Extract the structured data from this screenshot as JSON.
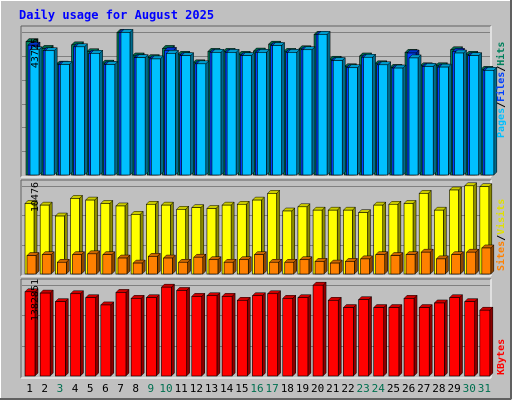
{
  "chart_data": [
    {
      "type": "bar",
      "title": "Daily usage for August 2025",
      "panel": "hits-files-pages",
      "ymax_label": "43725",
      "right_labels": [
        {
          "text": "Pages",
          "color": "#00c0ff"
        },
        {
          "text": "Files",
          "color": "#0040ff"
        },
        {
          "text": "Hits",
          "color": "#00805c"
        }
      ],
      "separators": [
        "/",
        "/"
      ],
      "categories": [
        "1",
        "2",
        "3",
        "4",
        "5",
        "6",
        "7",
        "8",
        "9",
        "10",
        "11",
        "12",
        "13",
        "14",
        "15",
        "16",
        "17",
        "18",
        "19",
        "20",
        "21",
        "22",
        "23",
        "24",
        "25",
        "26",
        "27",
        "28",
        "29",
        "30",
        "31"
      ],
      "series": [
        {
          "name": "Hits",
          "color": "#00805c",
          "values": [
            40800,
            38700,
            33900,
            39800,
            37700,
            34200,
            43600,
            36400,
            35900,
            38700,
            36900,
            34300,
            37800,
            37800,
            36900,
            37900,
            40000,
            37800,
            38600,
            43000,
            35400,
            33100,
            36400,
            34000,
            32900,
            37500,
            33400,
            33400,
            38300,
            36900,
            32300
          ]
        },
        {
          "name": "Files",
          "color": "#0040ff",
          "values": [
            39700,
            38000,
            33800,
            39200,
            37200,
            33800,
            43600,
            35900,
            35500,
            38100,
            36500,
            34000,
            37500,
            37500,
            36500,
            37500,
            39600,
            37500,
            38300,
            43000,
            35000,
            32800,
            36000,
            33700,
            32700,
            37300,
            33200,
            33000,
            37800,
            36500,
            32000
          ]
        },
        {
          "name": "Pages",
          "color": "#00c0ff",
          "values": [
            38300,
            38000,
            33800,
            39200,
            37200,
            33800,
            43600,
            35900,
            35500,
            37200,
            36500,
            34000,
            37500,
            37500,
            36500,
            37500,
            39600,
            37500,
            38300,
            43000,
            35000,
            32800,
            36000,
            33700,
            32700,
            35800,
            33200,
            33000,
            37300,
            36500,
            32000
          ]
        }
      ]
    },
    {
      "type": "bar",
      "panel": "visits-sites",
      "ymax_label": "10476",
      "right_labels": [
        {
          "text": "Sites",
          "color": "#ff8000"
        },
        {
          "text": "Visits",
          "color": "#e0e000"
        }
      ],
      "separators": [
        "/"
      ],
      "categories": [
        "1",
        "2",
        "3",
        "4",
        "5",
        "6",
        "7",
        "8",
        "9",
        "10",
        "11",
        "12",
        "13",
        "14",
        "15",
        "16",
        "17",
        "18",
        "19",
        "20",
        "21",
        "22",
        "23",
        "24",
        "25",
        "26",
        "27",
        "28",
        "29",
        "30",
        "31"
      ],
      "series": [
        {
          "name": "Visits",
          "color": "#ffff00",
          "values": [
            8400,
            8200,
            6900,
            9000,
            8800,
            8400,
            8100,
            7100,
            8300,
            8200,
            7700,
            7900,
            7800,
            8200,
            8300,
            8800,
            9600,
            7500,
            8000,
            7600,
            7600,
            7600,
            7300,
            8200,
            8300,
            8400,
            9600,
            7600,
            10000,
            10500,
            10400
          ]
        },
        {
          "name": "Sites",
          "color": "#ff8000",
          "values": [
            2200,
            2300,
            1400,
            2300,
            2400,
            2300,
            1900,
            1300,
            2100,
            1900,
            1400,
            2000,
            1700,
            1400,
            1700,
            2300,
            1400,
            1400,
            1700,
            1500,
            1300,
            1500,
            1800,
            2300,
            2200,
            2300,
            2600,
            1800,
            2300,
            2600,
            3100
          ]
        }
      ]
    },
    {
      "type": "bar",
      "panel": "kbytes",
      "ymax_label": "1382851",
      "right_labels": [
        {
          "text": "KBytes",
          "color": "#ff0000"
        }
      ],
      "separators": [],
      "categories": [
        "1",
        "2",
        "3",
        "4",
        "5",
        "6",
        "7",
        "8",
        "9",
        "10",
        "11",
        "12",
        "13",
        "14",
        "15",
        "16",
        "17",
        "18",
        "19",
        "20",
        "21",
        "22",
        "23",
        "24",
        "25",
        "26",
        "27",
        "28",
        "29",
        "30",
        "31"
      ],
      "series": [
        {
          "name": "KBytes",
          "color": "#ff0000",
          "values": [
            1280000,
            1260000,
            1130000,
            1250000,
            1190000,
            1080000,
            1270000,
            1180000,
            1190000,
            1350000,
            1300000,
            1210000,
            1220000,
            1210000,
            1150000,
            1220000,
            1250000,
            1180000,
            1190000,
            1380000,
            1150000,
            1040000,
            1160000,
            1040000,
            1040000,
            1180000,
            1040000,
            1110000,
            1190000,
            1130000,
            1000000
          ]
        }
      ]
    }
  ],
  "x_labels": [
    {
      "text": "1",
      "color": "#000000"
    },
    {
      "text": "2",
      "color": "#000000"
    },
    {
      "text": "3",
      "color": "#007050"
    },
    {
      "text": "4",
      "color": "#000000"
    },
    {
      "text": "5",
      "color": "#000000"
    },
    {
      "text": "6",
      "color": "#000000"
    },
    {
      "text": "7",
      "color": "#000000"
    },
    {
      "text": "8",
      "color": "#000000"
    },
    {
      "text": "9",
      "color": "#007050"
    },
    {
      "text": "10",
      "color": "#007050"
    },
    {
      "text": "11",
      "color": "#000000"
    },
    {
      "text": "12",
      "color": "#000000"
    },
    {
      "text": "13",
      "color": "#000000"
    },
    {
      "text": "14",
      "color": "#000000"
    },
    {
      "text": "15",
      "color": "#000000"
    },
    {
      "text": "16",
      "color": "#007050"
    },
    {
      "text": "17",
      "color": "#007050"
    },
    {
      "text": "18",
      "color": "#000000"
    },
    {
      "text": "19",
      "color": "#000000"
    },
    {
      "text": "20",
      "color": "#000000"
    },
    {
      "text": "21",
      "color": "#000000"
    },
    {
      "text": "22",
      "color": "#000000"
    },
    {
      "text": "23",
      "color": "#007050"
    },
    {
      "text": "24",
      "color": "#007050"
    },
    {
      "text": "25",
      "color": "#000000"
    },
    {
      "text": "26",
      "color": "#000000"
    },
    {
      "text": "27",
      "color": "#000000"
    },
    {
      "text": "28",
      "color": "#000000"
    },
    {
      "text": "29",
      "color": "#000000"
    },
    {
      "text": "30",
      "color": "#007050"
    },
    {
      "text": "31",
      "color": "#007050"
    }
  ],
  "colors": {
    "background": "#c0c0c0",
    "grid": "#808080",
    "title": "#0000ff"
  }
}
